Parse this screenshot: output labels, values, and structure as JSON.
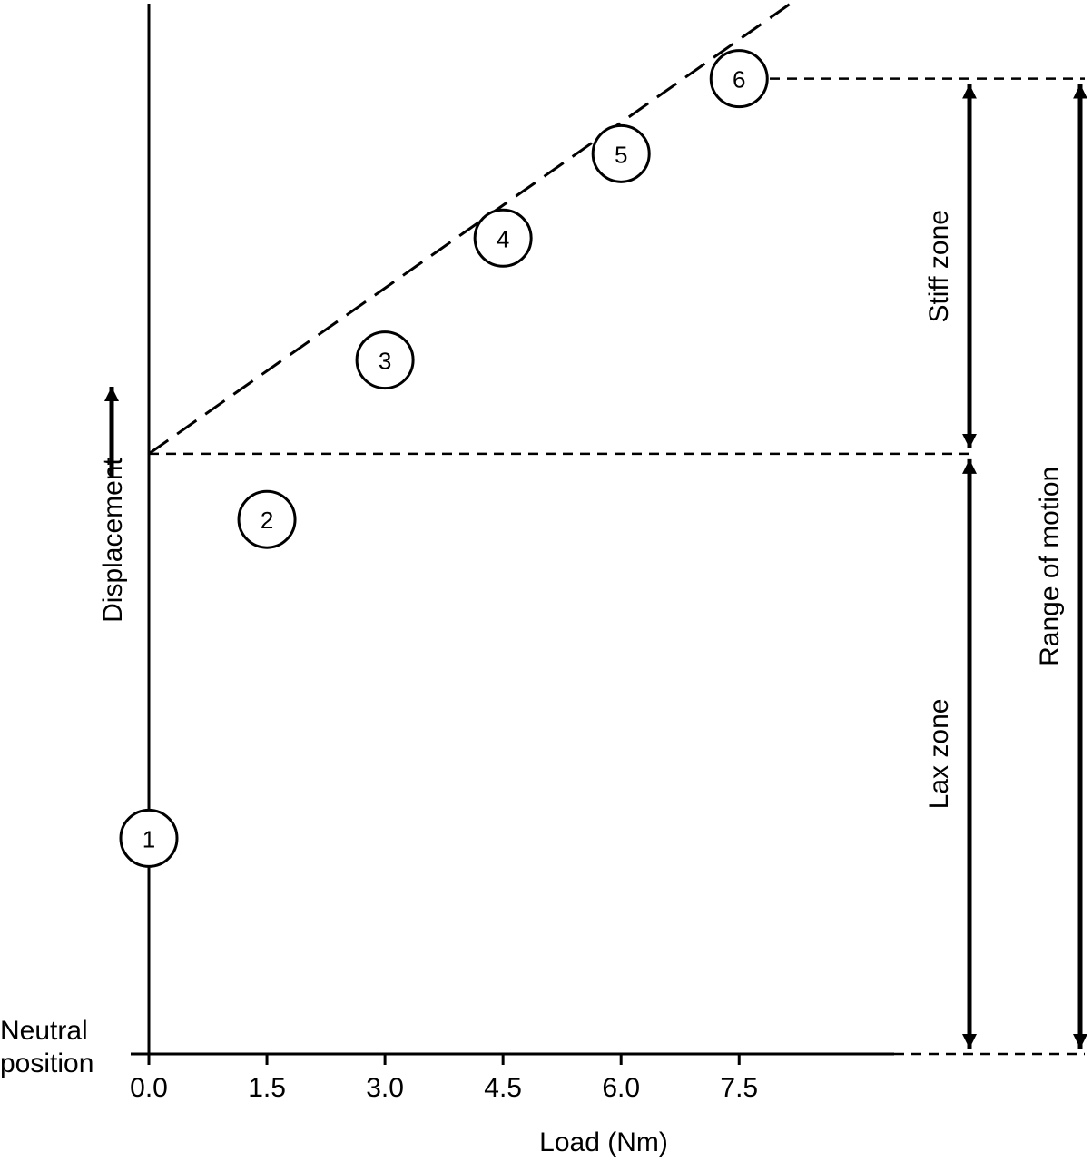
{
  "chart_data": {
    "type": "scatter",
    "xlabel": "Load (Nm)",
    "ylabel": "Displacement",
    "neutral_label": [
      "Neutral",
      "position"
    ],
    "x_ticks": [
      "0.0",
      "1.5",
      "3.0",
      "4.5",
      "6.0",
      "7.5"
    ],
    "xlim": [
      0,
      9.5
    ],
    "ylim": [
      0,
      10.6
    ],
    "points": [
      {
        "label": "1",
        "x": 0.0,
        "y": 2.3
      },
      {
        "label": "2",
        "x": 1.5,
        "y": 5.7
      },
      {
        "label": "3",
        "x": 3.0,
        "y": 7.4
      },
      {
        "label": "4",
        "x": 4.5,
        "y": 8.7
      },
      {
        "label": "5",
        "x": 6.0,
        "y": 9.6
      },
      {
        "label": "6",
        "x": 7.5,
        "y": 10.4
      }
    ],
    "trend_line": {
      "style": "dashed",
      "from": [
        0.0,
        6.4
      ],
      "to": [
        9.0,
        11.7
      ]
    },
    "reference_lines": [
      {
        "style": "dashed",
        "y": 6.4
      },
      {
        "style": "dashed",
        "y": 10.4
      }
    ],
    "zones": [
      {
        "label": "Stiff zone",
        "y_from": 6.4,
        "y_to": 10.4
      },
      {
        "label": "Lax zone",
        "y_from": 0,
        "y_to": 6.4
      },
      {
        "label": "Range of motion",
        "y_from": 0,
        "y_to": 10.4
      }
    ]
  }
}
